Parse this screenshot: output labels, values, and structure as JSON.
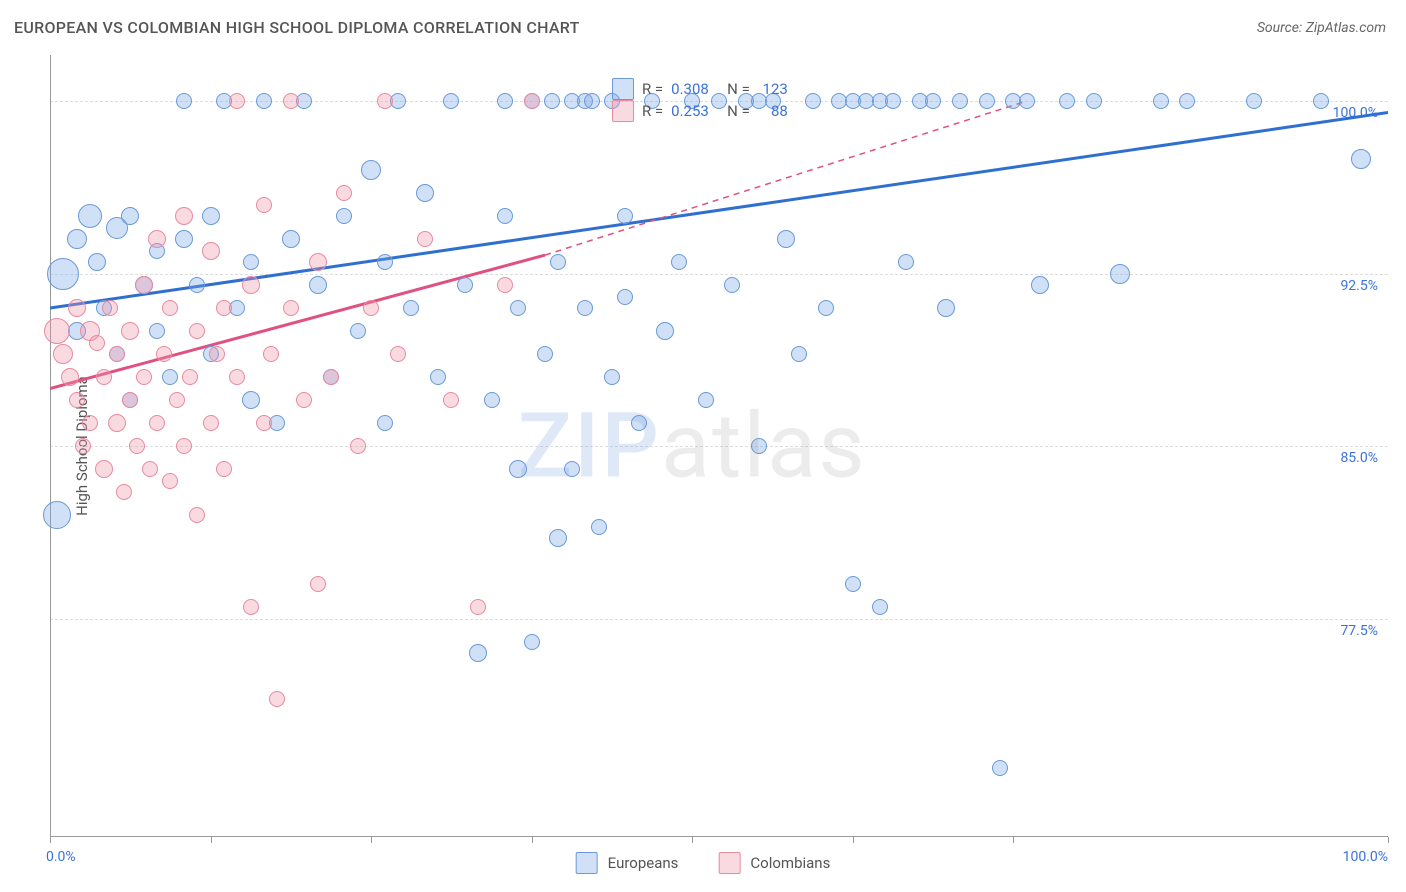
{
  "title": "EUROPEAN VS COLOMBIAN HIGH SCHOOL DIPLOMA CORRELATION CHART",
  "source": "Source: ZipAtlas.com",
  "ylabel": "High School Diploma",
  "watermark": {
    "first": "ZIP",
    "rest": "atlas"
  },
  "chart": {
    "type": "scatter",
    "xlim": [
      0,
      100
    ],
    "ylim": [
      68,
      102
    ],
    "y_ticks": [
      77.5,
      85.0,
      92.5,
      100.0
    ],
    "y_tick_labels": [
      "77.5%",
      "85.0%",
      "92.5%",
      "100.0%"
    ],
    "x_ticks": [
      0,
      12,
      24,
      36,
      48,
      60,
      72,
      100
    ],
    "x_end_labels": {
      "min": "0.0%",
      "max": "100.0%"
    },
    "background_color": "#ffffff",
    "grid_color": "#dddddd",
    "axis_color": "#999999",
    "series": [
      {
        "name": "Europeans",
        "name_key": "legend.europeans",
        "fill": "rgba(120,165,230,0.35)",
        "stroke": "#6a9ad8",
        "trend_color": "#2f6fd0",
        "trend_solid": [
          [
            0,
            91.0
          ],
          [
            100,
            99.5
          ]
        ],
        "trend_dash": null,
        "stats": {
          "R": "0.308",
          "N": "123"
        },
        "points": [
          {
            "x": 0.5,
            "y": 82,
            "r": 14
          },
          {
            "x": 1,
            "y": 92.5,
            "r": 16
          },
          {
            "x": 2,
            "y": 90,
            "r": 9
          },
          {
            "x": 2,
            "y": 94,
            "r": 10
          },
          {
            "x": 3,
            "y": 95,
            "r": 12
          },
          {
            "x": 3.5,
            "y": 93,
            "r": 9
          },
          {
            "x": 4,
            "y": 91,
            "r": 8
          },
          {
            "x": 5,
            "y": 94.5,
            "r": 11
          },
          {
            "x": 5,
            "y": 89,
            "r": 8
          },
          {
            "x": 6,
            "y": 95,
            "r": 9
          },
          {
            "x": 6,
            "y": 87,
            "r": 8
          },
          {
            "x": 7,
            "y": 92,
            "r": 9
          },
          {
            "x": 8,
            "y": 93.5,
            "r": 8
          },
          {
            "x": 8,
            "y": 90,
            "r": 8
          },
          {
            "x": 9,
            "y": 88,
            "r": 8
          },
          {
            "x": 10,
            "y": 94,
            "r": 9
          },
          {
            "x": 10,
            "y": 100,
            "r": 8
          },
          {
            "x": 11,
            "y": 92,
            "r": 8
          },
          {
            "x": 12,
            "y": 95,
            "r": 9
          },
          {
            "x": 12,
            "y": 89,
            "r": 8
          },
          {
            "x": 13,
            "y": 100,
            "r": 8
          },
          {
            "x": 14,
            "y": 91,
            "r": 8
          },
          {
            "x": 15,
            "y": 87,
            "r": 9
          },
          {
            "x": 15,
            "y": 93,
            "r": 8
          },
          {
            "x": 16,
            "y": 100,
            "r": 8
          },
          {
            "x": 17,
            "y": 86,
            "r": 8
          },
          {
            "x": 18,
            "y": 94,
            "r": 9
          },
          {
            "x": 19,
            "y": 100,
            "r": 8
          },
          {
            "x": 20,
            "y": 92,
            "r": 9
          },
          {
            "x": 21,
            "y": 88,
            "r": 8
          },
          {
            "x": 22,
            "y": 95,
            "r": 8
          },
          {
            "x": 23,
            "y": 90,
            "r": 8
          },
          {
            "x": 24,
            "y": 97,
            "r": 10
          },
          {
            "x": 25,
            "y": 93,
            "r": 8
          },
          {
            "x": 25,
            "y": 86,
            "r": 8
          },
          {
            "x": 26,
            "y": 100,
            "r": 8
          },
          {
            "x": 27,
            "y": 91,
            "r": 8
          },
          {
            "x": 28,
            "y": 96,
            "r": 9
          },
          {
            "x": 29,
            "y": 88,
            "r": 8
          },
          {
            "x": 30,
            "y": 100,
            "r": 8
          },
          {
            "x": 31,
            "y": 92,
            "r": 8
          },
          {
            "x": 32,
            "y": 76,
            "r": 9
          },
          {
            "x": 33,
            "y": 87,
            "r": 8
          },
          {
            "x": 34,
            "y": 95,
            "r": 8
          },
          {
            "x": 34,
            "y": 100,
            "r": 8
          },
          {
            "x": 35,
            "y": 84,
            "r": 9
          },
          {
            "x": 35,
            "y": 91,
            "r": 8
          },
          {
            "x": 36,
            "y": 76.5,
            "r": 8
          },
          {
            "x": 36,
            "y": 100,
            "r": 8
          },
          {
            "x": 37,
            "y": 89,
            "r": 8
          },
          {
            "x": 37.5,
            "y": 100,
            "r": 8
          },
          {
            "x": 38,
            "y": 93,
            "r": 8
          },
          {
            "x": 38,
            "y": 81,
            "r": 9
          },
          {
            "x": 39,
            "y": 100,
            "r": 8
          },
          {
            "x": 39,
            "y": 84,
            "r": 8
          },
          {
            "x": 40,
            "y": 100,
            "r": 8
          },
          {
            "x": 40,
            "y": 91,
            "r": 8
          },
          {
            "x": 40.5,
            "y": 100,
            "r": 8
          },
          {
            "x": 41,
            "y": 81.5,
            "r": 8
          },
          {
            "x": 42,
            "y": 88,
            "r": 8
          },
          {
            "x": 42,
            "y": 100,
            "r": 8
          },
          {
            "x": 43,
            "y": 95,
            "r": 8
          },
          {
            "x": 43,
            "y": 91.5,
            "r": 8
          },
          {
            "x": 44,
            "y": 86,
            "r": 8
          },
          {
            "x": 45,
            "y": 100,
            "r": 8
          },
          {
            "x": 46,
            "y": 90,
            "r": 9
          },
          {
            "x": 47,
            "y": 93,
            "r": 8
          },
          {
            "x": 48,
            "y": 100,
            "r": 8
          },
          {
            "x": 49,
            "y": 87,
            "r": 8
          },
          {
            "x": 50,
            "y": 100,
            "r": 8
          },
          {
            "x": 51,
            "y": 92,
            "r": 8
          },
          {
            "x": 52,
            "y": 100,
            "r": 8
          },
          {
            "x": 53,
            "y": 85,
            "r": 8
          },
          {
            "x": 53,
            "y": 100,
            "r": 8
          },
          {
            "x": 54,
            "y": 100,
            "r": 8
          },
          {
            "x": 55,
            "y": 94,
            "r": 9
          },
          {
            "x": 56,
            "y": 89,
            "r": 8
          },
          {
            "x": 57,
            "y": 100,
            "r": 8
          },
          {
            "x": 58,
            "y": 91,
            "r": 8
          },
          {
            "x": 59,
            "y": 100,
            "r": 8
          },
          {
            "x": 60,
            "y": 79,
            "r": 8
          },
          {
            "x": 60,
            "y": 100,
            "r": 8
          },
          {
            "x": 61,
            "y": 100,
            "r": 8
          },
          {
            "x": 62,
            "y": 78,
            "r": 8
          },
          {
            "x": 62,
            "y": 100,
            "r": 8
          },
          {
            "x": 63,
            "y": 100,
            "r": 8
          },
          {
            "x": 64,
            "y": 93,
            "r": 8
          },
          {
            "x": 65,
            "y": 100,
            "r": 8
          },
          {
            "x": 66,
            "y": 100,
            "r": 8
          },
          {
            "x": 67,
            "y": 91,
            "r": 9
          },
          {
            "x": 68,
            "y": 100,
            "r": 8
          },
          {
            "x": 70,
            "y": 100,
            "r": 8
          },
          {
            "x": 71,
            "y": 71,
            "r": 8
          },
          {
            "x": 72,
            "y": 100,
            "r": 8
          },
          {
            "x": 73,
            "y": 100,
            "r": 8
          },
          {
            "x": 74,
            "y": 92,
            "r": 9
          },
          {
            "x": 76,
            "y": 100,
            "r": 8
          },
          {
            "x": 78,
            "y": 100,
            "r": 8
          },
          {
            "x": 80,
            "y": 92.5,
            "r": 10
          },
          {
            "x": 83,
            "y": 100,
            "r": 8
          },
          {
            "x": 85,
            "y": 100,
            "r": 8
          },
          {
            "x": 90,
            "y": 100,
            "r": 8
          },
          {
            "x": 95,
            "y": 100,
            "r": 8
          },
          {
            "x": 98,
            "y": 97.5,
            "r": 10
          }
        ]
      },
      {
        "name": "Colombians",
        "name_key": "legend.colombians",
        "fill": "rgba(240,150,170,0.35)",
        "stroke": "#e88aa0",
        "trend_color": "#e05080",
        "trend_solid": [
          [
            0,
            87.5
          ],
          [
            37,
            93.3
          ]
        ],
        "trend_dash": [
          [
            37,
            93.3
          ],
          [
            73,
            100
          ]
        ],
        "stats": {
          "R": "0.253",
          "N": "88"
        },
        "points": [
          {
            "x": 0.5,
            "y": 90,
            "r": 13
          },
          {
            "x": 1,
            "y": 89,
            "r": 10
          },
          {
            "x": 1.5,
            "y": 88,
            "r": 9
          },
          {
            "x": 2,
            "y": 91,
            "r": 9
          },
          {
            "x": 2,
            "y": 87,
            "r": 8
          },
          {
            "x": 2.5,
            "y": 85,
            "r": 8
          },
          {
            "x": 3,
            "y": 90,
            "r": 10
          },
          {
            "x": 3,
            "y": 86,
            "r": 8
          },
          {
            "x": 3.5,
            "y": 89.5,
            "r": 8
          },
          {
            "x": 4,
            "y": 84,
            "r": 9
          },
          {
            "x": 4,
            "y": 88,
            "r": 8
          },
          {
            "x": 4.5,
            "y": 91,
            "r": 8
          },
          {
            "x": 5,
            "y": 86,
            "r": 9
          },
          {
            "x": 5,
            "y": 89,
            "r": 8
          },
          {
            "x": 5.5,
            "y": 83,
            "r": 8
          },
          {
            "x": 6,
            "y": 90,
            "r": 9
          },
          {
            "x": 6,
            "y": 87,
            "r": 8
          },
          {
            "x": 6.5,
            "y": 85,
            "r": 8
          },
          {
            "x": 7,
            "y": 92,
            "r": 9
          },
          {
            "x": 7,
            "y": 88,
            "r": 8
          },
          {
            "x": 7.5,
            "y": 84,
            "r": 8
          },
          {
            "x": 8,
            "y": 86,
            "r": 8
          },
          {
            "x": 8,
            "y": 94,
            "r": 9
          },
          {
            "x": 8.5,
            "y": 89,
            "r": 8
          },
          {
            "x": 9,
            "y": 91,
            "r": 8
          },
          {
            "x": 9,
            "y": 83.5,
            "r": 8
          },
          {
            "x": 9.5,
            "y": 87,
            "r": 8
          },
          {
            "x": 10,
            "y": 95,
            "r": 9
          },
          {
            "x": 10,
            "y": 85,
            "r": 8
          },
          {
            "x": 10.5,
            "y": 88,
            "r": 8
          },
          {
            "x": 11,
            "y": 90,
            "r": 8
          },
          {
            "x": 11,
            "y": 82,
            "r": 8
          },
          {
            "x": 12,
            "y": 93.5,
            "r": 9
          },
          {
            "x": 12,
            "y": 86,
            "r": 8
          },
          {
            "x": 12.5,
            "y": 89,
            "r": 8
          },
          {
            "x": 13,
            "y": 91,
            "r": 8
          },
          {
            "x": 13,
            "y": 84,
            "r": 8
          },
          {
            "x": 14,
            "y": 88,
            "r": 8
          },
          {
            "x": 14,
            "y": 100,
            "r": 8
          },
          {
            "x": 15,
            "y": 78,
            "r": 8
          },
          {
            "x": 15,
            "y": 92,
            "r": 9
          },
          {
            "x": 16,
            "y": 86,
            "r": 8
          },
          {
            "x": 16,
            "y": 95.5,
            "r": 8
          },
          {
            "x": 16.5,
            "y": 89,
            "r": 8
          },
          {
            "x": 17,
            "y": 74,
            "r": 8
          },
          {
            "x": 18,
            "y": 91,
            "r": 8
          },
          {
            "x": 18,
            "y": 100,
            "r": 8
          },
          {
            "x": 19,
            "y": 87,
            "r": 8
          },
          {
            "x": 20,
            "y": 93,
            "r": 9
          },
          {
            "x": 20,
            "y": 79,
            "r": 8
          },
          {
            "x": 21,
            "y": 88,
            "r": 8
          },
          {
            "x": 22,
            "y": 96,
            "r": 8
          },
          {
            "x": 23,
            "y": 85,
            "r": 8
          },
          {
            "x": 24,
            "y": 91,
            "r": 8
          },
          {
            "x": 25,
            "y": 100,
            "r": 8
          },
          {
            "x": 26,
            "y": 89,
            "r": 8
          },
          {
            "x": 28,
            "y": 94,
            "r": 8
          },
          {
            "x": 30,
            "y": 87,
            "r": 8
          },
          {
            "x": 32,
            "y": 78,
            "r": 8
          },
          {
            "x": 34,
            "y": 92,
            "r": 8
          },
          {
            "x": 36,
            "y": 100,
            "r": 8
          }
        ]
      }
    ]
  },
  "legend": {
    "europeans": "Europeans",
    "colombians": "Colombians",
    "R_label": "R =",
    "N_label": "N ="
  }
}
